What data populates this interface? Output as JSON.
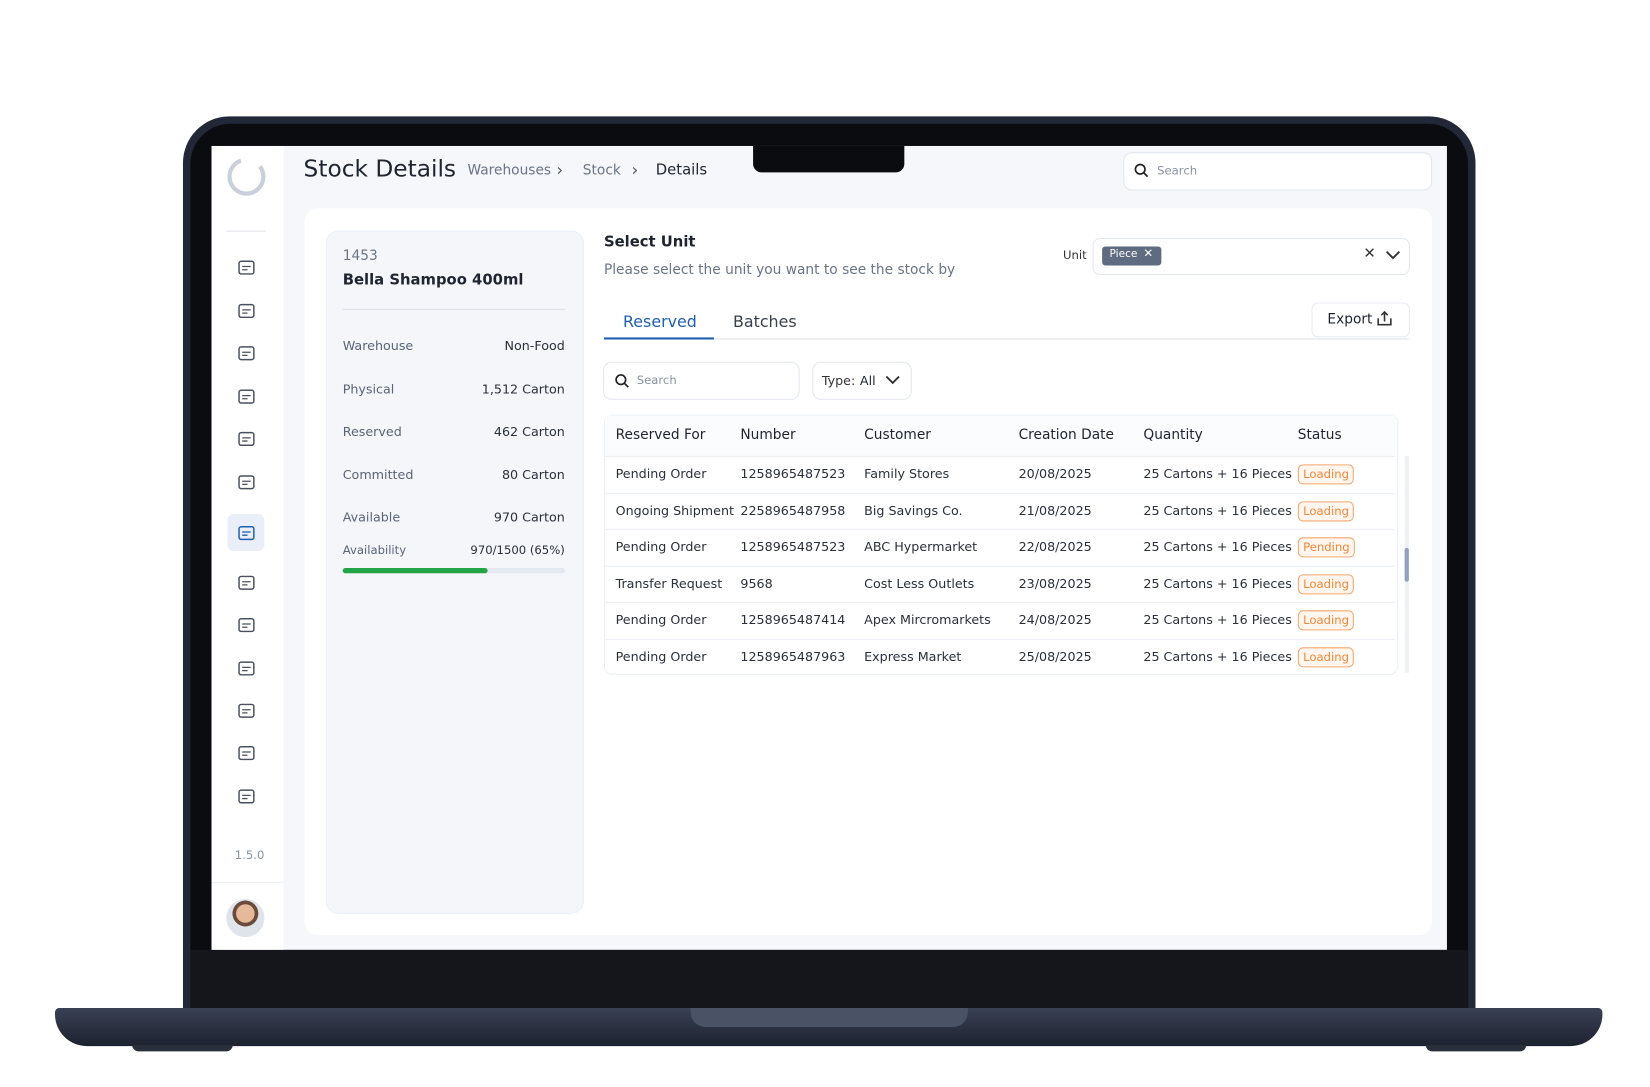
{
  "header": {
    "title": "Stock Details",
    "breadcrumbs": [
      "Warehouses",
      "Stock",
      "Details"
    ],
    "search_placeholder": "Search"
  },
  "sidebar": {
    "version": "1.5.0"
  },
  "product": {
    "id": "1453",
    "name": "Bella Shampoo 400ml",
    "fields": [
      {
        "label": "Warehouse",
        "value": "Non-Food"
      },
      {
        "label": "Physical",
        "value": "1,512 Carton"
      },
      {
        "label": "Reserved",
        "value": "462 Carton"
      },
      {
        "label": "Committed",
        "value": "80 Carton"
      },
      {
        "label": "Available",
        "value": "970 Carton"
      }
    ],
    "availability": {
      "label": "Availability",
      "value": "970/1500 (65%)",
      "percent": 65
    }
  },
  "unit_selector": {
    "title": "Select Unit",
    "subtitle": "Please select the unit you want to see the stock by",
    "label": "Unit",
    "selected": "Piece"
  },
  "tabs": [
    "Reserved",
    "Batches"
  ],
  "export": "Export",
  "filters": {
    "search_placeholder": "Search",
    "type_label": "Type:",
    "type_value": "All"
  },
  "table": {
    "columns": [
      "Reserved For",
      "Number",
      "Customer",
      "Creation Date",
      "Quantity",
      "Status"
    ],
    "rows": [
      [
        "Pending Order",
        "1258965487523",
        "Family Stores",
        "20/08/2025",
        "25 Cartons + 16 Pieces",
        "Loading"
      ],
      [
        "Ongoing Shipment",
        "2258965487958",
        "Big Savings Co.",
        "21/08/2025",
        "25 Cartons + 16 Pieces",
        "Loading"
      ],
      [
        "Pending Order",
        "1258965487523",
        "ABC Hypermarket",
        "22/08/2025",
        "25 Cartons + 16 Pieces",
        "Pending"
      ],
      [
        "Transfer Request",
        "9568",
        "Cost Less Outlets",
        "23/08/2025",
        "25 Cartons + 16 Pieces",
        "Loading"
      ],
      [
        "Pending Order",
        "1258965487414",
        "Apex Mircromarkets",
        "24/08/2025",
        "25 Cartons + 16 Pieces",
        "Loading"
      ],
      [
        "Pending Order",
        "1258965487963",
        "Express Market",
        "25/08/2025",
        "25 Cartons + 16 Pieces",
        "Loading"
      ]
    ]
  }
}
